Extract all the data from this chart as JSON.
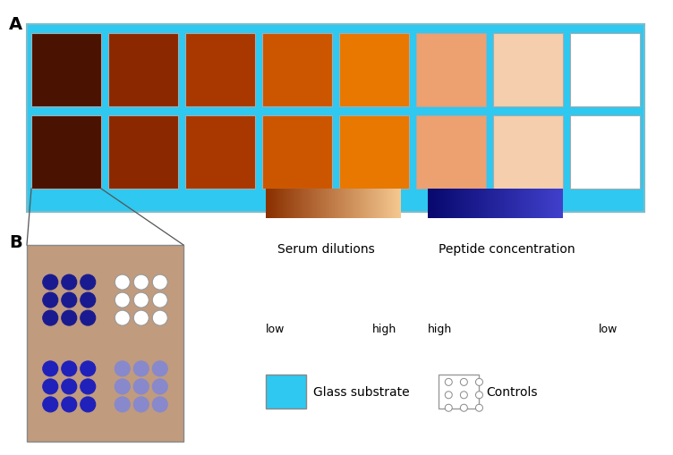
{
  "fig_width": 7.52,
  "fig_height": 5.1,
  "bg_color": "#ffffff",
  "label_A": "A",
  "label_B": "B",
  "cyan_color": "#2EC8F0",
  "panel_A": {
    "row_colors": [
      [
        "#4A1200",
        "#8B2800",
        "#A83800",
        "#CC5500",
        "#E87800",
        "#EDA070",
        "#F5CEAD",
        "#FFFFFF"
      ],
      [
        "#4A1200",
        "#8B2800",
        "#A83800",
        "#CC5500",
        "#E87800",
        "#EDA070",
        "#F5CEAD",
        "#FFFFFF"
      ]
    ]
  },
  "panel_B": {
    "bg_color": "#C09B7E",
    "dot_colors": {
      "top_left": "#1A1A90",
      "top_right_fill": "#FFFFFF",
      "top_right_edge": "#999999",
      "bottom_left": "#2020BB",
      "bottom_right": "#8888CC"
    }
  },
  "colorbar_serum": {
    "title": "Serum dilutions",
    "label_low": "low",
    "label_high": "high",
    "color_left": "#8B3000",
    "color_right": "#F5C890"
  },
  "colorbar_peptide": {
    "title": "Peptide concentration",
    "label_low": "low",
    "label_high": "high",
    "color_left": "#08086E",
    "color_right": "#4040CC"
  },
  "legend_substrate": {
    "color": "#2EC8F0",
    "label": "Glass substrate"
  },
  "legend_controls": {
    "label": "Controls"
  }
}
